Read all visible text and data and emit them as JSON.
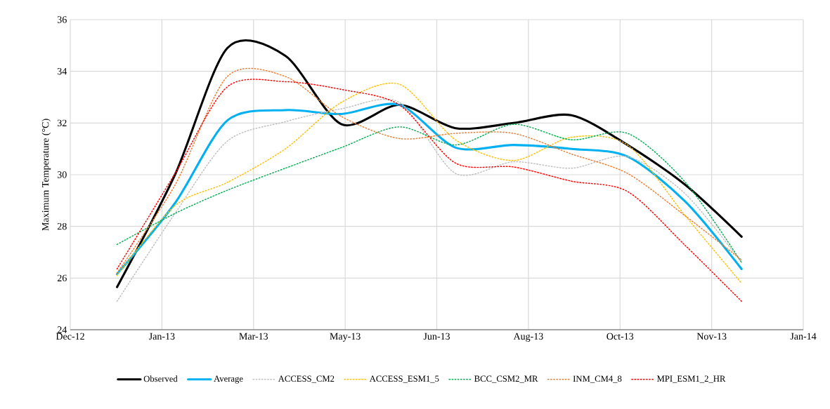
{
  "chart_data": {
    "type": "line",
    "ylabel": "Maximum Temperature (°C)",
    "x": [
      "2013-01-05",
      "2013-02-05",
      "2013-03-05",
      "2013-04-05",
      "2013-05-05",
      "2013-06-05",
      "2013-07-05",
      "2013-08-05",
      "2013-09-05",
      "2013-10-05",
      "2013-11-05",
      "2013-12-05"
    ],
    "series": [
      {
        "name": "Observed",
        "color": "#000000",
        "line_style": "solid",
        "values": [
          25.65,
          30.0,
          34.9,
          34.6,
          31.95,
          32.7,
          31.8,
          32.0,
          32.3,
          31.15,
          29.6,
          27.6
        ]
      },
      {
        "name": "Average",
        "color": "#00b0f0",
        "line_style": "solid",
        "values": [
          26.15,
          28.9,
          32.1,
          32.5,
          32.35,
          32.7,
          31.05,
          31.15,
          31.0,
          30.7,
          28.95,
          26.35
        ]
      },
      {
        "name": "ACCESS_CM2",
        "color": "#bfbfbf",
        "line_style": "dotted",
        "values": [
          25.1,
          28.5,
          31.3,
          32.05,
          32.55,
          32.8,
          30.05,
          30.5,
          30.25,
          30.7,
          29.25,
          26.6
        ]
      },
      {
        "name": "ACCESS_ESM1_5",
        "color": "#ffc000",
        "line_style": "dotted",
        "values": [
          26.1,
          28.8,
          29.7,
          31.0,
          32.8,
          33.5,
          31.35,
          30.55,
          31.45,
          31.15,
          28.4,
          25.8
        ]
      },
      {
        "name": "BCC_CSM2_MR",
        "color": "#00b050",
        "line_style": "dotted",
        "values": [
          27.3,
          28.5,
          29.4,
          30.25,
          31.05,
          31.85,
          31.15,
          31.95,
          31.35,
          31.6,
          29.7,
          26.6
        ]
      },
      {
        "name": "INM_CM4_8",
        "color": "#ed7d31",
        "line_style": "dotted",
        "values": [
          26.2,
          29.6,
          33.8,
          33.8,
          32.25,
          31.4,
          31.6,
          31.6,
          30.8,
          30.05,
          28.4,
          26.7
        ]
      },
      {
        "name": "MPI_ESM1_2_HR",
        "color": "#ff0000",
        "line_style": "dotted",
        "values": [
          26.35,
          30.05,
          33.4,
          33.6,
          33.3,
          32.7,
          30.45,
          30.3,
          29.75,
          29.35,
          27.25,
          25.1
        ]
      }
    ],
    "xlim": [
      "2012-12-11",
      "2014-01-07"
    ],
    "xticks": [
      {
        "value": "2012-12-11",
        "label": "Dec-12"
      },
      {
        "value": "2013-01-29",
        "label": "Jan-13"
      },
      {
        "value": "2013-03-19",
        "label": "Mar-13"
      },
      {
        "value": "2013-05-07",
        "label": "May-13"
      },
      {
        "value": "2013-06-25",
        "label": "Jun-13"
      },
      {
        "value": "2013-08-13",
        "label": "Aug-13"
      },
      {
        "value": "2013-10-01",
        "label": "Oct-13"
      },
      {
        "value": "2013-11-19",
        "label": "Nov-13"
      },
      {
        "value": "2014-01-07",
        "label": "Jan-14"
      }
    ],
    "ylim": [
      24,
      36
    ],
    "yticks": [
      24,
      26,
      28,
      30,
      32,
      34,
      36
    ],
    "grid": true,
    "legend": "bottom",
    "marker": "none"
  }
}
